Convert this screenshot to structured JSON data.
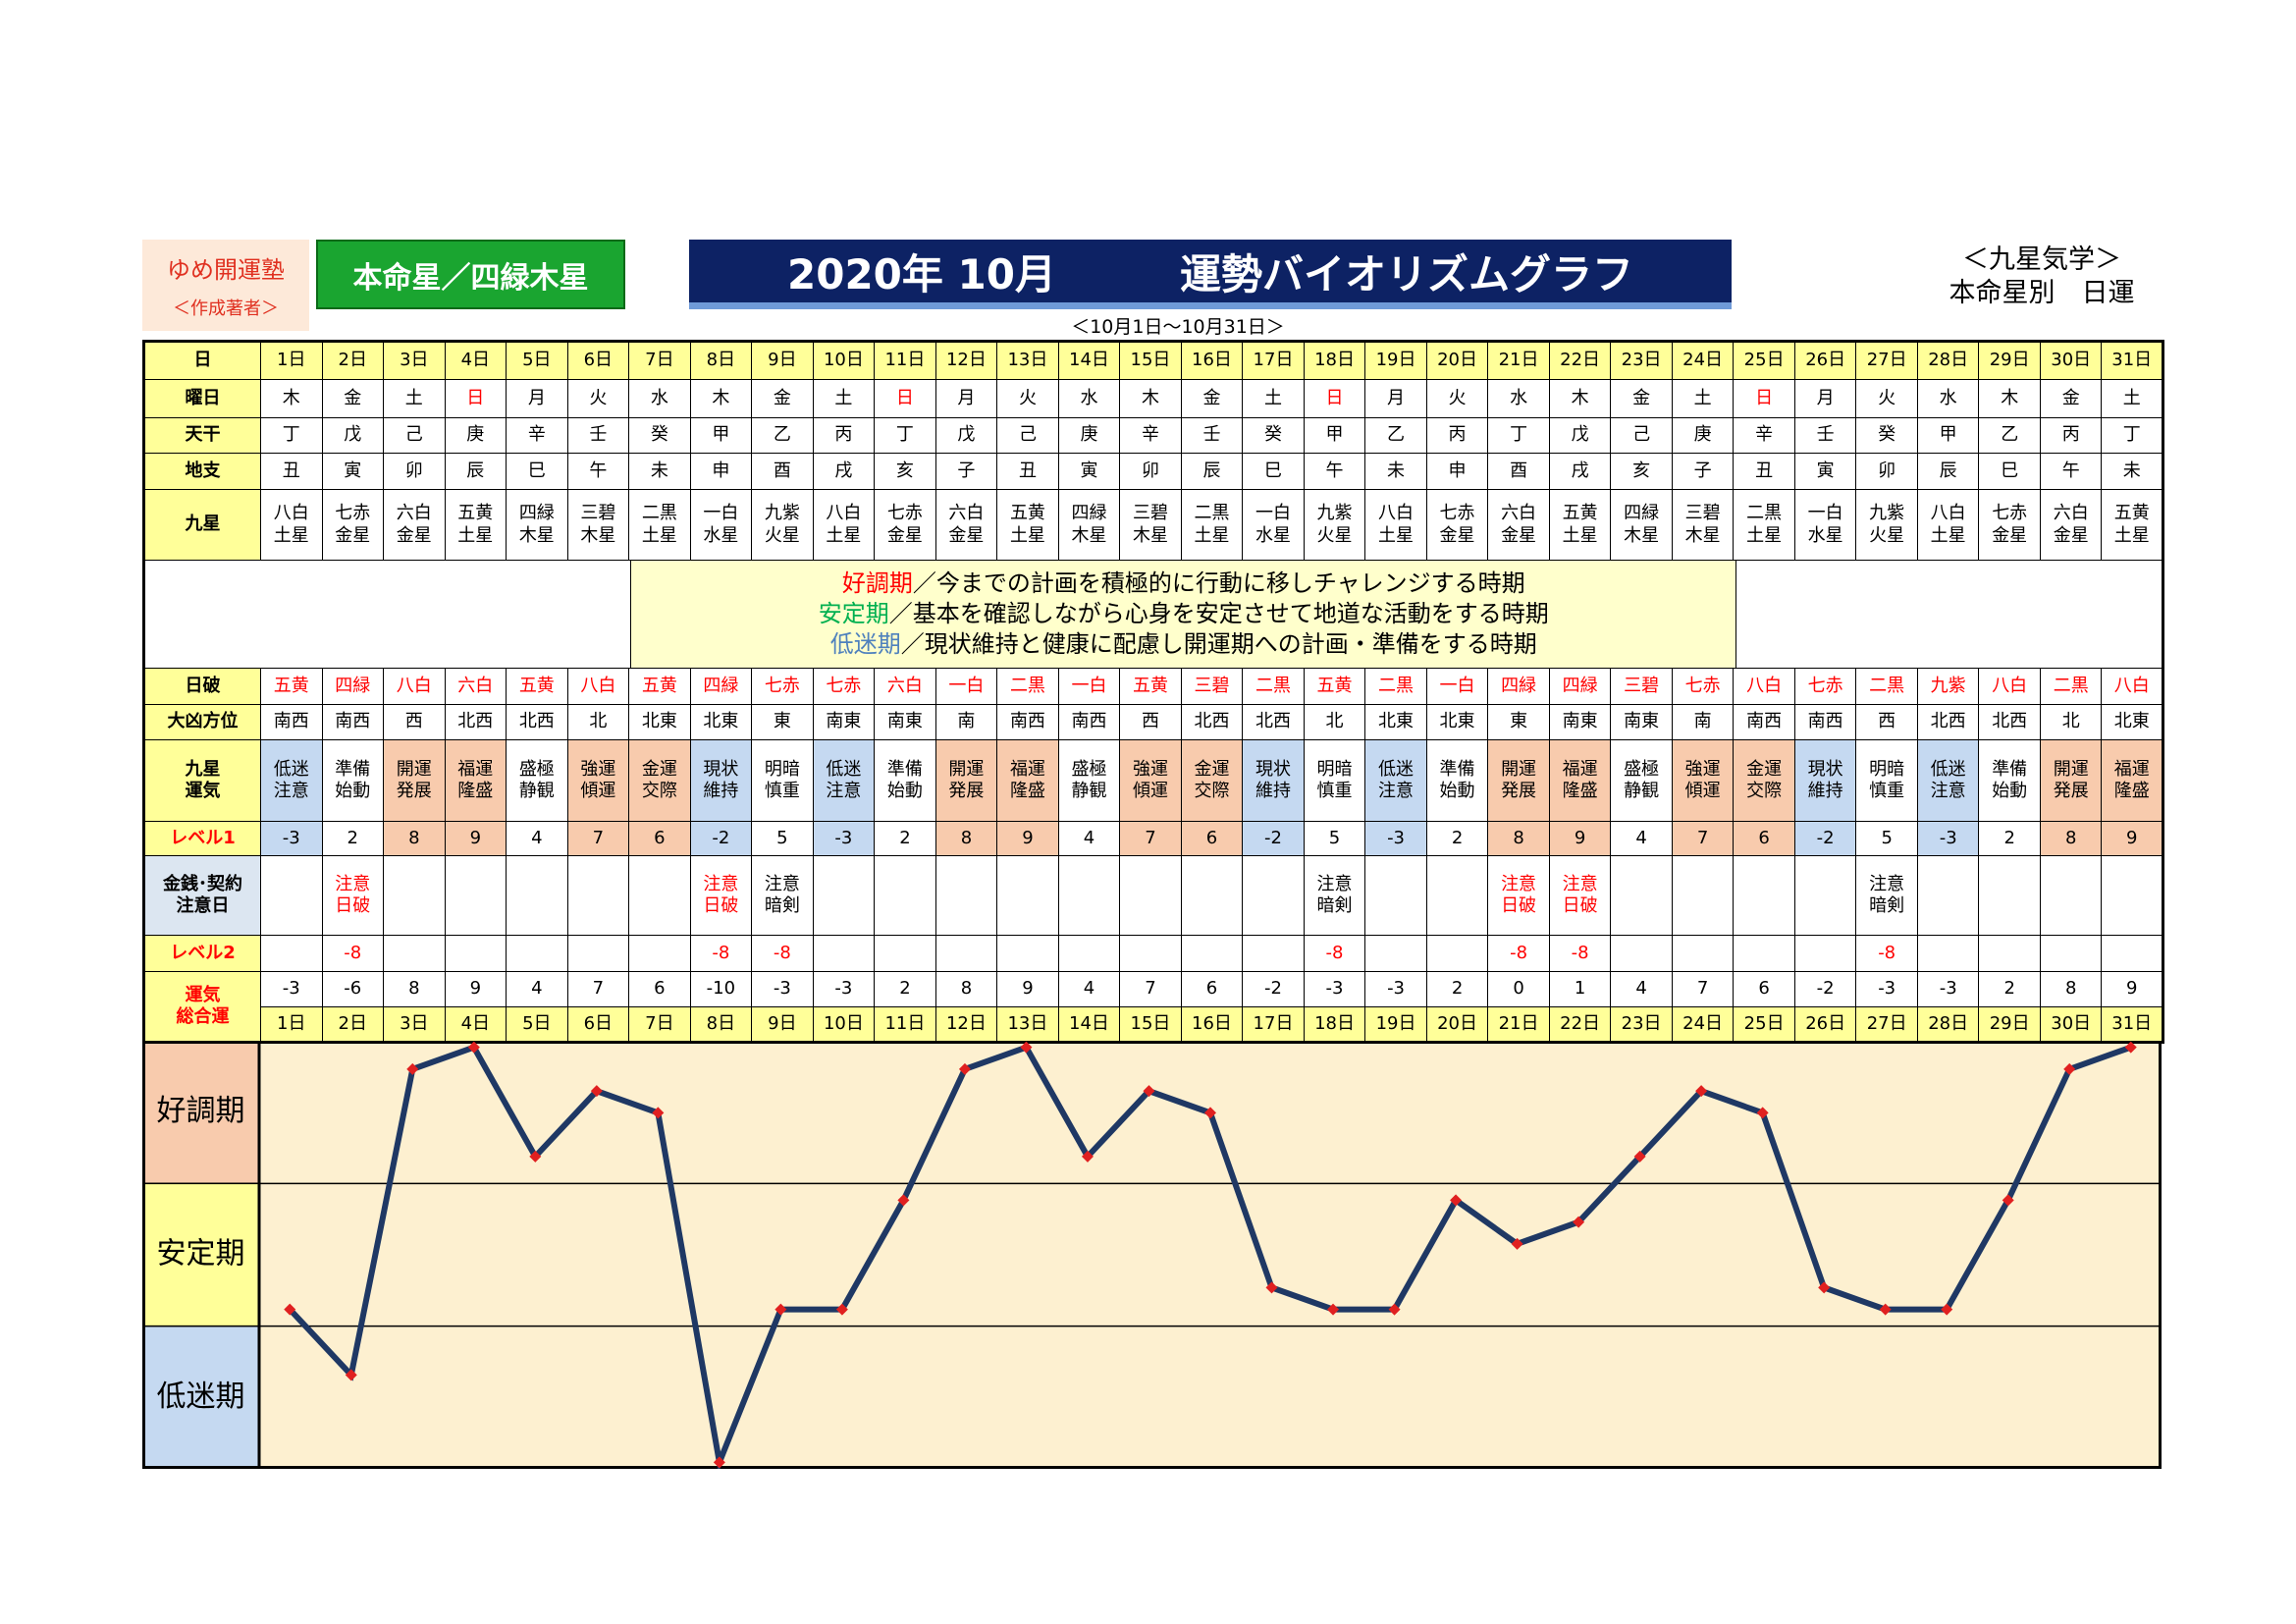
{
  "header": {
    "school": "ゆめ開運塾",
    "author": "＜作成著者＞",
    "star": "本命星／四緑木星",
    "title": "2020年 10月　　　運勢バイオリズムグラフ",
    "period": "＜10月1日～10月31日＞",
    "category": "＜九星気学＞",
    "subtitle": "本命星別　日運"
  },
  "legend": [
    {
      "term": "好調期",
      "text": "／今までの計画を積極的に行動に移しチャレンジする時期",
      "color": "#ff0000"
    },
    {
      "term": "安定期",
      "text": "／基本を確認しながら心身を安定させて地道な活動をする時期",
      "color": "#00b050"
    },
    {
      "term": "低迷期",
      "text": "／現状維持と健康に配慮し開運期への計画・準備をする時期",
      "color": "#4f81bd"
    }
  ],
  "table": {
    "rows": [
      {
        "label": "日",
        "fill": "#ffff99",
        "cells": [
          "1日",
          "2日",
          "3日",
          "4日",
          "5日",
          "6日",
          "7日",
          "8日",
          "9日",
          "10日",
          "11日",
          "12日",
          "13日",
          "14日",
          "15日",
          "16日",
          "17日",
          "18日",
          "19日",
          "20日",
          "21日",
          "22日",
          "23日",
          "24日",
          "25日",
          "26日",
          "27日",
          "28日",
          "29日",
          "30日",
          "31日"
        ]
      },
      {
        "label": "曜日",
        "sunday_color": "#ff0000",
        "cells": [
          "木",
          "金",
          "土",
          "日",
          "月",
          "火",
          "水",
          "木",
          "金",
          "土",
          "日",
          "月",
          "火",
          "水",
          "木",
          "金",
          "土",
          "日",
          "月",
          "火",
          "水",
          "木",
          "金",
          "土",
          "日",
          "月",
          "火",
          "水",
          "木",
          "金",
          "土"
        ]
      },
      {
        "label": "天干",
        "cells": [
          "丁",
          "戊",
          "己",
          "庚",
          "辛",
          "壬",
          "癸",
          "甲",
          "乙",
          "丙",
          "丁",
          "戊",
          "己",
          "庚",
          "辛",
          "壬",
          "癸",
          "甲",
          "乙",
          "丙",
          "丁",
          "戊",
          "己",
          "庚",
          "辛",
          "壬",
          "癸",
          "甲",
          "乙",
          "丙",
          "丁"
        ]
      },
      {
        "label": "地支",
        "cells": [
          "丑",
          "寅",
          "卯",
          "辰",
          "巳",
          "午",
          "未",
          "申",
          "酉",
          "戌",
          "亥",
          "子",
          "丑",
          "寅",
          "卯",
          "辰",
          "巳",
          "午",
          "未",
          "申",
          "酉",
          "戌",
          "亥",
          "子",
          "丑",
          "寅",
          "卯",
          "辰",
          "巳",
          "午",
          "未"
        ]
      },
      {
        "label": "九星",
        "cells": [
          "八白\n土星",
          "七赤\n金星",
          "六白\n金星",
          "五黄\n土星",
          "四緑\n木星",
          "三碧\n木星",
          "二黒\n土星",
          "一白\n水星",
          "九紫\n火星",
          "八白\n土星",
          "七赤\n金星",
          "六白\n金星",
          "五黄\n土星",
          "四緑\n木星",
          "三碧\n木星",
          "二黒\n土星",
          "一白\n水星",
          "九紫\n火星",
          "八白\n土星",
          "七赤\n金星",
          "六白\n金星",
          "五黄\n土星",
          "四緑\n木星",
          "三碧\n木星",
          "二黒\n土星",
          "一白\n水星",
          "九紫\n火星",
          "八白\n土星",
          "七赤\n金星",
          "六白\n金星",
          "五黄\n土星"
        ]
      },
      {
        "label": "日破",
        "color": "#ff0000",
        "cells": [
          "五黄",
          "四緑",
          "八白",
          "六白",
          "五黄",
          "八白",
          "五黄",
          "四緑",
          "七赤",
          "七赤",
          "六白",
          "一白",
          "二黒",
          "一白",
          "五黄",
          "三碧",
          "二黒",
          "五黄",
          "二黒",
          "一白",
          "四緑",
          "四緑",
          "三碧",
          "七赤",
          "八白",
          "七赤",
          "二黒",
          "九紫",
          "八白",
          "二黒",
          "八白"
        ]
      },
      {
        "label": "大凶方位",
        "cells": [
          "南西",
          "南西",
          "西",
          "北西",
          "北西",
          "北",
          "北東",
          "北東",
          "東",
          "南東",
          "南東",
          "南",
          "南西",
          "南西",
          "西",
          "北西",
          "北西",
          "北",
          "北東",
          "北東",
          "東",
          "南東",
          "南東",
          "南",
          "南西",
          "南西",
          "西",
          "北西",
          "北西",
          "北",
          "北東"
        ]
      },
      {
        "label": "九星\n運気",
        "cells": [
          "低迷\n注意",
          "準備\n始動",
          "開運\n発展",
          "福運\n隆盛",
          "盛極\n静観",
          "強運\n傾運",
          "金運\n交際",
          "現状\n維持",
          "明暗\n慎重",
          "低迷\n注意",
          "準備\n始動",
          "開運\n発展",
          "福運\n隆盛",
          "盛極\n静観",
          "強運\n傾運",
          "金運\n交際",
          "現状\n維持",
          "明暗\n慎重",
          "低迷\n注意",
          "準備\n始動",
          "開運\n発展",
          "福運\n隆盛",
          "盛極\n静観",
          "強運\n傾運",
          "金運\n交際",
          "現状\n維持",
          "明暗\n慎重",
          "低迷\n注意",
          "準備\n始動",
          "開運\n発展",
          "福運\n隆盛"
        ],
        "fills": [
          "#c5d9f1",
          "#fff",
          "#f8cbad",
          "#f8cbad",
          "#fff",
          "#f8cbad",
          "#f8cbad",
          "#c5d9f1",
          "#fff",
          "#c5d9f1",
          "#fff",
          "#f8cbad",
          "#f8cbad",
          "#fff",
          "#f8cbad",
          "#f8cbad",
          "#c5d9f1",
          "#fff",
          "#c5d9f1",
          "#fff",
          "#f8cbad",
          "#f8cbad",
          "#fff",
          "#f8cbad",
          "#f8cbad",
          "#c5d9f1",
          "#fff",
          "#c5d9f1",
          "#fff",
          "#f8cbad",
          "#f8cbad"
        ]
      },
      {
        "label": "レベル1",
        "label_color": "#ff0000",
        "cells": [
          -3,
          2,
          8,
          9,
          4,
          7,
          6,
          -2,
          5,
          -3,
          2,
          8,
          9,
          4,
          7,
          6,
          -2,
          5,
          -3,
          2,
          8,
          9,
          4,
          7,
          6,
          -2,
          5,
          -3,
          2,
          8,
          9
        ]
      },
      {
        "label": "金銭･契約\n注意日",
        "label_fill": "#dce6f1",
        "cells": [
          null,
          "注意\n日破",
          null,
          null,
          null,
          null,
          null,
          "注意\n日破",
          "注意\n暗剣",
          null,
          null,
          null,
          null,
          null,
          null,
          null,
          null,
          "注意\n暗剣",
          null,
          null,
          "注意\n日破",
          "注意\n日破",
          null,
          null,
          null,
          null,
          "注意\n暗剣",
          null,
          null,
          null,
          null
        ]
      },
      {
        "label": "レベル2",
        "label_color": "#ff0000",
        "color": "#ff0000",
        "cells": [
          null,
          -8,
          null,
          null,
          null,
          null,
          null,
          -8,
          -8,
          null,
          null,
          null,
          null,
          null,
          null,
          null,
          null,
          -8,
          null,
          null,
          -8,
          -8,
          null,
          null,
          null,
          null,
          -8,
          null,
          null,
          null,
          null
        ]
      },
      {
        "label": "運気\n総合運",
        "label_color": "#ff0000",
        "cells": [
          -3,
          -6,
          8,
          9,
          4,
          7,
          6,
          -10,
          -3,
          -3,
          2,
          8,
          9,
          4,
          7,
          6,
          -2,
          -3,
          -3,
          2,
          0,
          1,
          4,
          7,
          6,
          -2,
          -3,
          -3,
          2,
          8,
          9
        ]
      }
    ]
  },
  "chart_data": {
    "type": "line",
    "bands": [
      "好調期",
      "安定期",
      "低迷期"
    ],
    "band_fills": [
      "#f8cbad",
      "#ffff99",
      "#c5d9f1"
    ],
    "plot_fill": "#fdf0d0",
    "ylim": [
      -10.3,
      9.3
    ],
    "color": "#1f3864",
    "marker_color": "#e02020"
  }
}
